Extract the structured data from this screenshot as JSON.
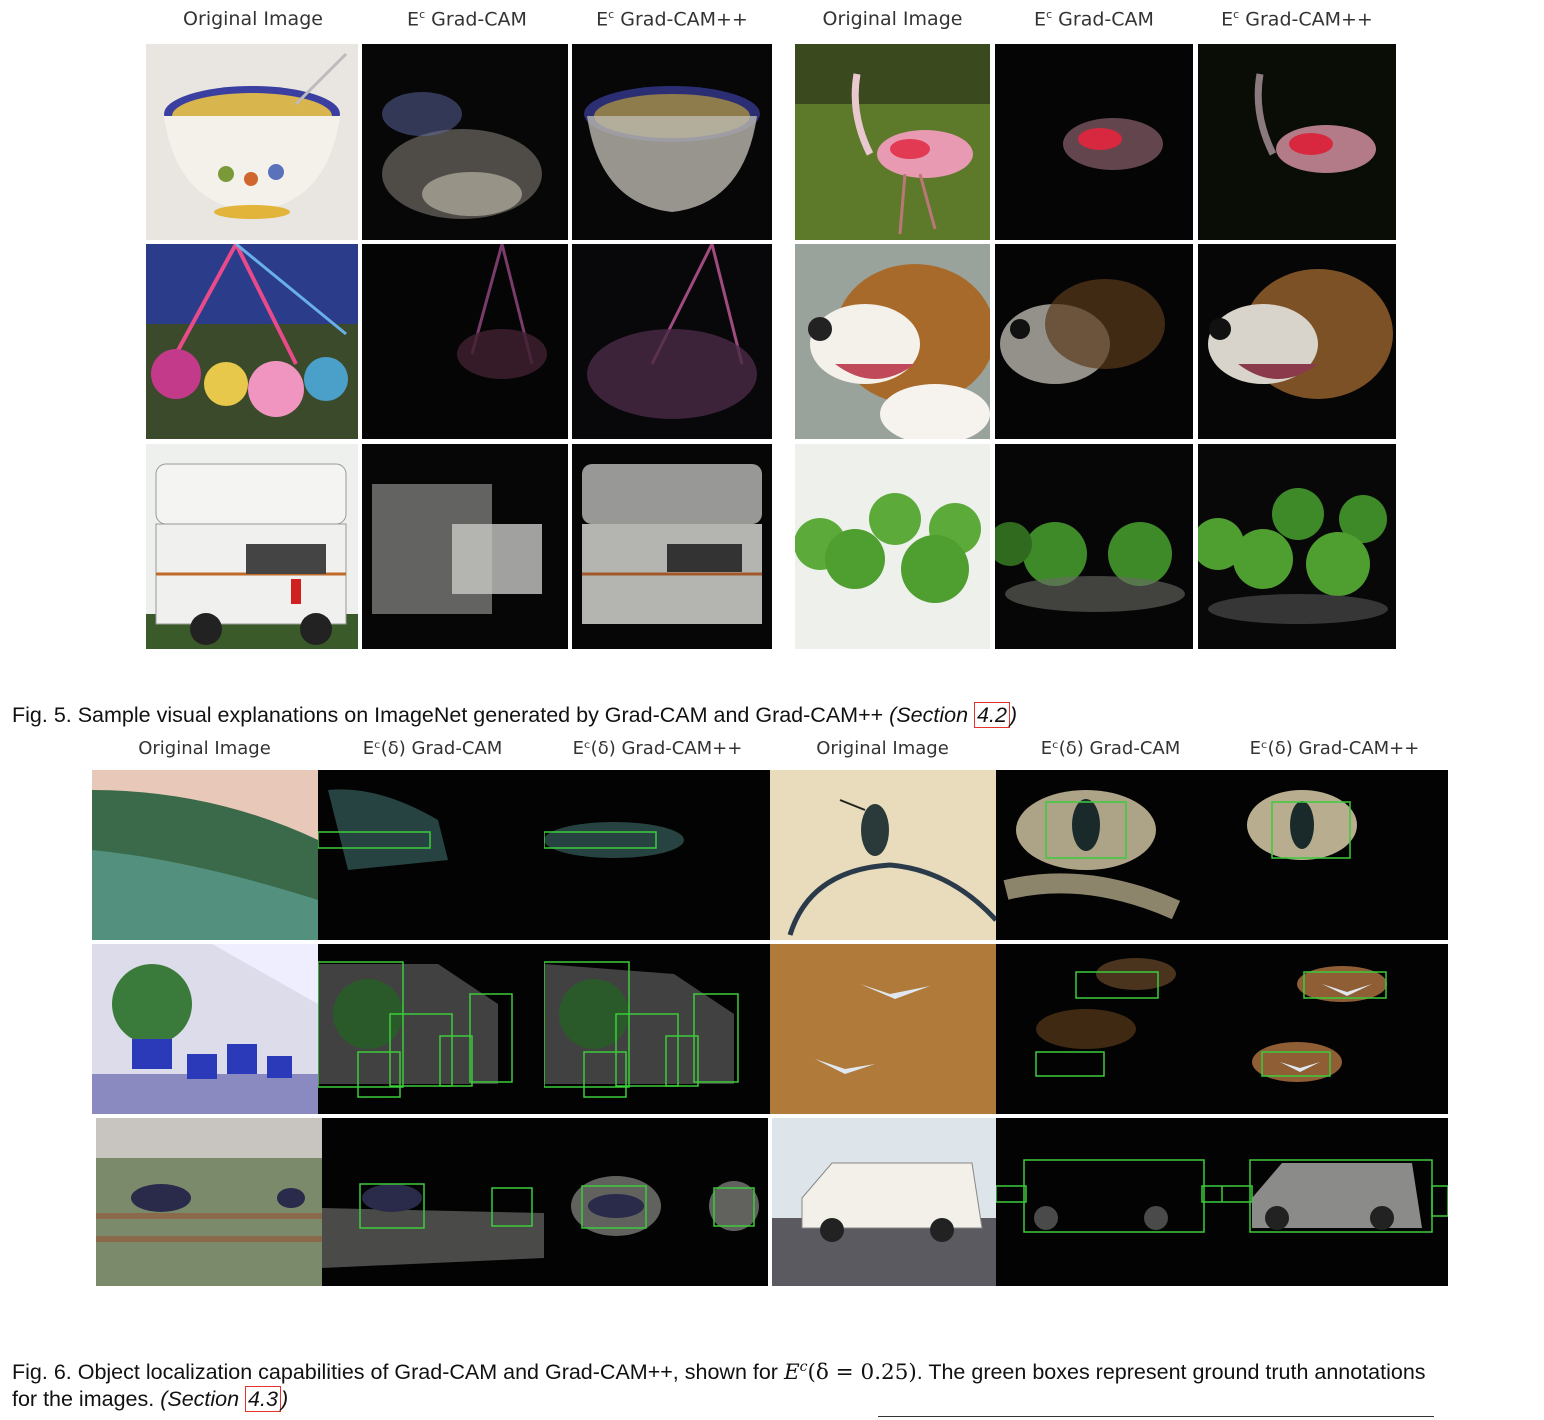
{
  "fig5": {
    "headers_left": {
      "original": "Original Image",
      "gradcam": "Grad-CAM",
      "gradcampp": "Grad-CAM++"
    },
    "headers_right": {
      "original": "Original Image",
      "gradcam": "Grad-CAM",
      "gradcampp": "Grad-CAM++"
    },
    "e_symbol": "E",
    "c_sup": "c",
    "caption": {
      "text": "Fig. 5. Sample visual explanations on ImageNet generated by Grad-CAM and Grad-CAM++ ",
      "section_prefix": "(Section",
      "section_ref": "4.2",
      "section_suffix": ")"
    }
  },
  "fig6": {
    "headers_left": {
      "original": "Original Image",
      "gradcam": "Eᶜ(δ) Grad-CAM",
      "gradcampp": "Eᶜ(δ) Grad-CAM++"
    },
    "headers_right": {
      "original": "Original Image",
      "gradcam": "Eᶜ(δ) Grad-CAM",
      "gradcampp": "Eᶜ(δ) Grad-CAM++"
    },
    "caption": {
      "line1_a": "Fig. 6. Object localization capabilities of Grad-CAM and Grad-CAM++, shown for ",
      "math": "E",
      "math_sup": "c",
      "math_args": "(δ = 0.25)",
      "line1_b": ". The green boxes represent ground truth annotations",
      "line2_a": "for the images. ",
      "section_prefix": "(Section",
      "section_ref": "4.3",
      "section_suffix": ")"
    }
  }
}
